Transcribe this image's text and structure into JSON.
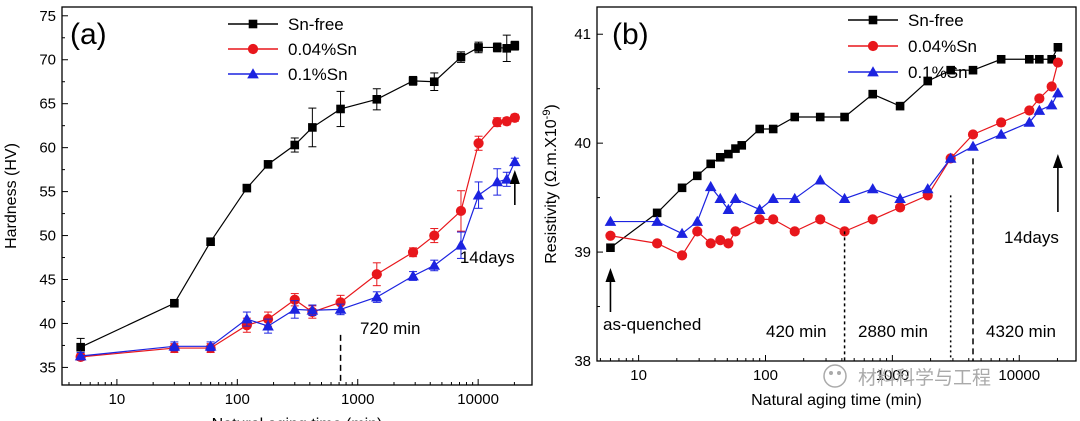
{
  "watermark": "材料科学与工程",
  "chart_data": [
    {
      "type": "line",
      "panel_label": "(a)",
      "xlabel": "Natural aging time (min)",
      "ylabel": "Hardness (HV)",
      "xscale": "log",
      "xlim": [
        3.5,
        28000
      ],
      "ylim": [
        33,
        76
      ],
      "xticks": [
        10,
        100,
        1000,
        10000
      ],
      "xtick_labels": [
        "10",
        "100",
        "1000",
        "10000"
      ],
      "yticks": [
        35,
        40,
        45,
        50,
        55,
        60,
        65,
        70,
        75
      ],
      "ytick_labels": [
        "35",
        "40",
        "45",
        "50",
        "55",
        "60",
        "65",
        "70",
        "75"
      ],
      "legend": "top-left",
      "series": [
        {
          "name": "Sn-free",
          "color": "#000000",
          "marker": "square",
          "x": [
            5,
            30,
            60,
            120,
            180,
            300,
            420,
            720,
            1440,
            2880,
            4320,
            7200,
            10080,
            14400,
            17280,
            20160
          ],
          "y": [
            37.3,
            42.3,
            49.3,
            55.4,
            58.1,
            60.3,
            62.3,
            64.4,
            65.5,
            67.6,
            67.5,
            70.3,
            71.4,
            71.4,
            71.3,
            71.6
          ],
          "err": [
            1.0,
            0.4,
            0.4,
            0.3,
            0.3,
            0.8,
            2.2,
            2.0,
            1.2,
            0.5,
            1.0,
            0.6,
            0.6,
            0.5,
            1.5,
            0.5
          ]
        },
        {
          "name": "0.04%Sn",
          "color": "#e8171c",
          "marker": "circle",
          "x": [
            5,
            30,
            60,
            120,
            180,
            300,
            420,
            720,
            1440,
            2880,
            4320,
            7200,
            10080,
            14400,
            17280,
            20160
          ],
          "y": [
            36.2,
            37.2,
            37.2,
            39.8,
            40.5,
            42.7,
            41.3,
            42.4,
            45.6,
            48.1,
            50.0,
            52.8,
            60.5,
            62.9,
            63.0,
            63.4
          ],
          "err": [
            0.4,
            0.5,
            0.5,
            0.8,
            0.8,
            0.7,
            0.7,
            0.8,
            1.3,
            0.5,
            0.8,
            2.3,
            0.8,
            0.5,
            0.4,
            0.4
          ]
        },
        {
          "name": "0.1%Sn",
          "color": "#1c23e0",
          "marker": "triangle",
          "x": [
            5,
            30,
            60,
            120,
            180,
            300,
            420,
            720,
            1440,
            2880,
            4320,
            7200,
            10080,
            14400,
            17280,
            20160
          ],
          "y": [
            36.3,
            37.4,
            37.4,
            40.5,
            39.7,
            41.6,
            41.5,
            41.6,
            43.0,
            45.4,
            46.6,
            48.9,
            54.6,
            56.1,
            56.4,
            58.4
          ],
          "err": [
            0.4,
            0.5,
            0.5,
            0.8,
            0.8,
            1.0,
            0.6,
            0.6,
            0.6,
            0.5,
            0.6,
            1.5,
            1.5,
            1.5,
            0.8,
            0.4
          ]
        }
      ],
      "annotations": [
        {
          "text": "14days",
          "arrow_at_x": 20160
        },
        {
          "text": "720 min",
          "dashed_at_x": 720
        }
      ]
    },
    {
      "type": "line",
      "panel_label": "(b)",
      "xlabel": "Natural aging time (min)",
      "ylabel": "Resistivity (Ω.m.X10",
      "ylabel_sup": "-9",
      "ylabel_close": ")",
      "xscale": "log",
      "xlim": [
        4.7,
        28000
      ],
      "ylim": [
        38,
        41.25
      ],
      "xticks": [
        10,
        100,
        1000,
        10000
      ],
      "xtick_labels": [
        "10",
        "100",
        "1000",
        "10000"
      ],
      "yticks": [
        38,
        39,
        40,
        41
      ],
      "ytick_labels": [
        "38",
        "39",
        "40",
        "41"
      ],
      "legend": "top-right",
      "series": [
        {
          "name": "Sn-free",
          "color": "#000000",
          "marker": "square",
          "x": [
            6,
            14,
            22,
            29,
            37,
            44,
            51,
            58,
            65,
            90,
            115,
            170,
            270,
            420,
            700,
            1150,
            1900,
            2880,
            4320,
            7200,
            12000,
            14400,
            18000,
            20160
          ],
          "y": [
            39.04,
            39.36,
            39.59,
            39.7,
            39.81,
            39.87,
            39.9,
            39.95,
            39.98,
            40.13,
            40.13,
            40.24,
            40.24,
            40.24,
            40.45,
            40.34,
            40.57,
            40.67,
            40.67,
            40.77,
            40.77,
            40.77,
            40.77,
            40.88
          ]
        },
        {
          "name": "0.04%Sn",
          "color": "#e8171c",
          "marker": "circle",
          "x": [
            6,
            14,
            22,
            29,
            37,
            44,
            51,
            58,
            90,
            115,
            170,
            270,
            420,
            700,
            1150,
            1900,
            2880,
            4320,
            7200,
            12000,
            14400,
            18000,
            20160
          ],
          "y": [
            39.15,
            39.08,
            38.97,
            39.19,
            39.08,
            39.11,
            39.08,
            39.19,
            39.3,
            39.3,
            39.19,
            39.3,
            39.19,
            39.3,
            39.41,
            39.52,
            39.86,
            40.08,
            40.19,
            40.3,
            40.41,
            40.52,
            40.74
          ]
        },
        {
          "name": "0.1%Sn",
          "color": "#1c23e0",
          "marker": "triangle",
          "x": [
            6,
            14,
            22,
            29,
            37,
            44,
            51,
            58,
            90,
            115,
            170,
            270,
            420,
            700,
            1150,
            1900,
            2880,
            4320,
            7200,
            12000,
            14400,
            18000,
            20160
          ],
          "y": [
            39.28,
            39.28,
            39.17,
            39.28,
            39.6,
            39.49,
            39.39,
            39.49,
            39.39,
            39.49,
            39.49,
            39.66,
            39.49,
            39.58,
            39.49,
            39.58,
            39.86,
            39.97,
            40.08,
            40.19,
            40.3,
            40.35,
            40.46
          ]
        }
      ],
      "annotations": [
        {
          "text": "as-quenched",
          "arrow_at_x": 6
        },
        {
          "text": "14days",
          "arrow_at_x": 20160
        },
        {
          "text": "420 min",
          "dashed_at_x": 420
        },
        {
          "text": "2880 min",
          "dashed_at_x": 2880
        },
        {
          "text": "4320 min",
          "dashed_at_x": 4320
        }
      ]
    }
  ]
}
